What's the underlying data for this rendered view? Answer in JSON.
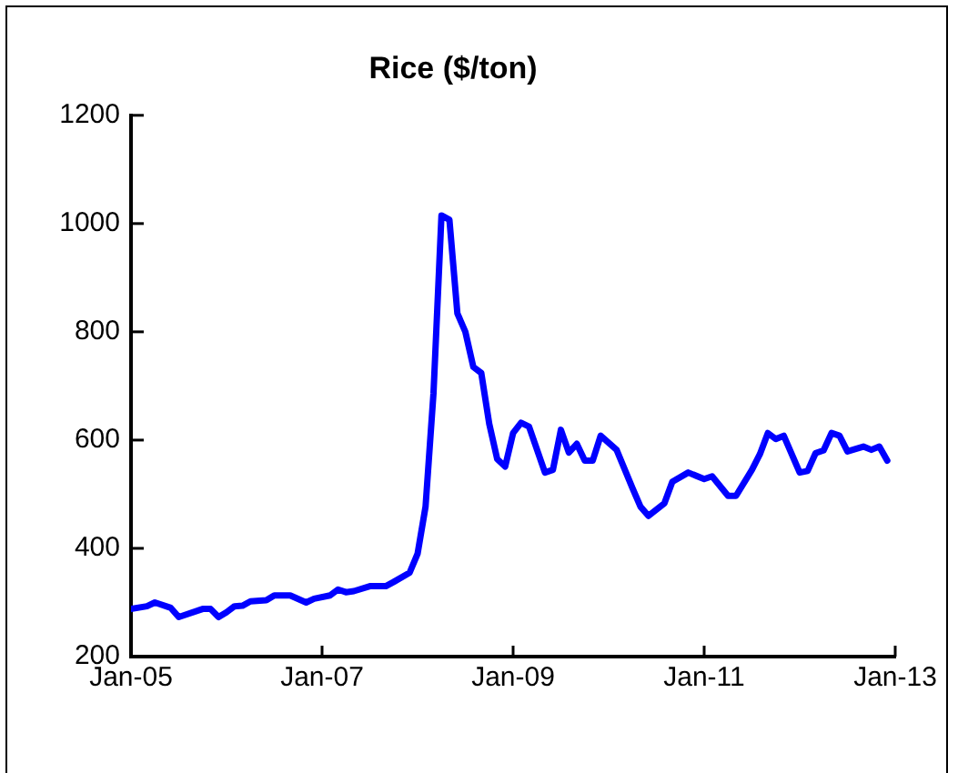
{
  "chart_data": {
    "type": "line",
    "title": "Rice ($/ton)",
    "color": "#0000ff",
    "marker": "none",
    "line_style": "solid",
    "grid": false,
    "legend": false,
    "x": [
      "2005-01",
      "2005-03",
      "2005-04",
      "2005-06",
      "2005-07",
      "2005-10",
      "2005-11",
      "2005-12",
      "2006-01",
      "2006-02",
      "2006-03",
      "2006-04",
      "2006-06",
      "2006-07",
      "2006-09",
      "2006-11",
      "2006-12",
      "2007-02",
      "2007-03",
      "2007-04",
      "2007-05",
      "2007-07",
      "2007-09",
      "2007-10",
      "2007-12",
      "2008-01",
      "2008-02",
      "2008-03",
      "2008-04",
      "2008-05",
      "2008-06",
      "2008-07",
      "2008-08",
      "2008-09",
      "2008-10",
      "2008-11",
      "2008-12",
      "2009-01",
      "2009-02",
      "2009-03",
      "2009-05",
      "2009-06",
      "2009-07",
      "2009-08",
      "2009-09",
      "2009-10",
      "2009-11",
      "2009-12",
      "2010-02",
      "2010-04",
      "2010-05",
      "2010-06",
      "2010-08",
      "2010-09",
      "2010-11",
      "2011-01",
      "2011-02",
      "2011-04",
      "2011-05",
      "2011-07",
      "2011-08",
      "2011-09",
      "2011-10",
      "2011-11",
      "2012-01",
      "2012-02",
      "2012-03",
      "2012-04",
      "2012-05",
      "2012-06",
      "2012-07",
      "2012-09",
      "2012-10",
      "2012-11",
      "2012-12"
    ],
    "values": [
      288,
      293,
      300,
      290,
      273,
      288,
      288,
      273,
      282,
      293,
      294,
      302,
      304,
      313,
      313,
      300,
      307,
      313,
      324,
      319,
      321,
      330,
      330,
      338,
      355,
      390,
      477,
      687,
      1015,
      1007,
      834,
      800,
      735,
      724,
      630,
      565,
      551,
      613,
      632,
      625,
      540,
      545,
      619,
      577,
      593,
      562,
      562,
      608,
      582,
      511,
      477,
      460,
      483,
      523,
      540,
      528,
      533,
      497,
      497,
      545,
      574,
      613,
      602,
      608,
      540,
      543,
      576,
      581,
      613,
      608,
      579,
      588,
      582,
      588,
      562
    ],
    "xlim": [
      "2005-01",
      "2013-01"
    ],
    "xticks": [
      {
        "value": "2005-01",
        "label": "Jan-05"
      },
      {
        "value": "2007-01",
        "label": "Jan-07"
      },
      {
        "value": "2009-01",
        "label": "Jan-09"
      },
      {
        "value": "2011-01",
        "label": "Jan-11"
      },
      {
        "value": "2013-01",
        "label": "Jan-13"
      }
    ],
    "ylim": [
      200,
      1200
    ],
    "yticks": [
      200,
      400,
      600,
      800,
      1000,
      1200
    ]
  }
}
